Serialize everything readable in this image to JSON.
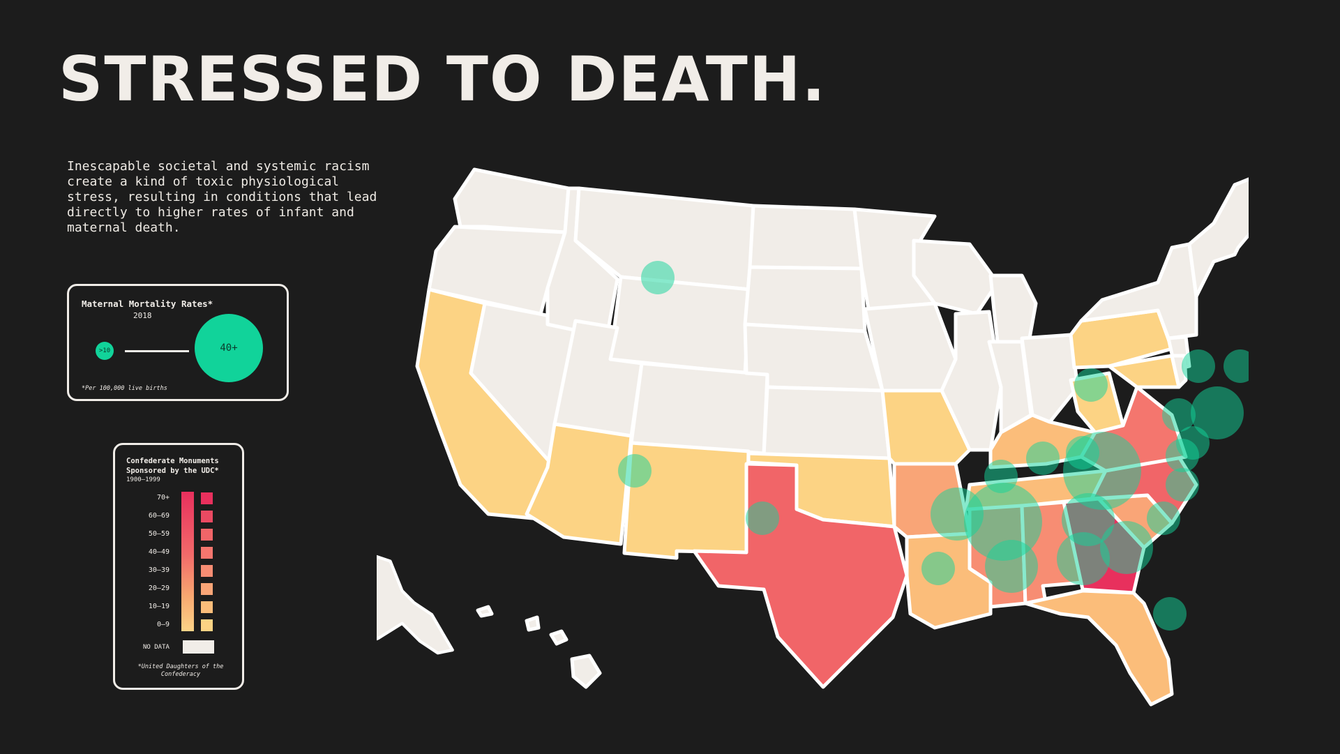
{
  "title": "STRESSED TO DEATH.",
  "intro": "Inescapable societal and systemic racism create a kind of toxic physiological stress, resulting in conditions that lead directly to higher rates of infant and maternal death.",
  "colors": {
    "background": "#1c1c1c",
    "no_data": "#f1ede8",
    "mortality_bubble": "#11d39a",
    "monuments_0_9": "#fcd384",
    "monuments_10_19": "#fbbd7a",
    "monuments_20_29": "#f9a577",
    "monuments_30_39": "#f78d73",
    "monuments_40_49": "#f4766e",
    "monuments_50_59": "#f16568",
    "monuments_60_69": "#ea4a62",
    "monuments_70_plus": "#e8305d"
  },
  "legend_mortality": {
    "title": "Maternal Mortality Rates*",
    "year": "2018",
    "small_label": ">10",
    "large_label": "40+",
    "footnote": "*Per 100,000 live births"
  },
  "legend_monuments": {
    "title": "Confederate Monuments Sponsored by the UDC*",
    "years": "1900–1999",
    "bins": [
      "70+",
      "60–69",
      "50–59",
      "40–49",
      "30–39",
      "20–29",
      "10–19",
      "0–9"
    ],
    "no_data_label": "NO DATA",
    "footnote": "*United Daughters of the Confederacy"
  },
  "map_data": {
    "states": [
      {
        "id": "WA",
        "category": "no_data"
      },
      {
        "id": "OR",
        "category": "no_data"
      },
      {
        "id": "CA",
        "category": "0-9"
      },
      {
        "id": "NV",
        "category": "no_data"
      },
      {
        "id": "ID",
        "category": "no_data"
      },
      {
        "id": "MT",
        "category": "no_data"
      },
      {
        "id": "WY",
        "category": "no_data"
      },
      {
        "id": "UT",
        "category": "no_data"
      },
      {
        "id": "AZ",
        "category": "0-9"
      },
      {
        "id": "CO",
        "category": "no_data"
      },
      {
        "id": "NM",
        "category": "0-9"
      },
      {
        "id": "ND",
        "category": "no_data"
      },
      {
        "id": "SD",
        "category": "no_data"
      },
      {
        "id": "NE",
        "category": "no_data"
      },
      {
        "id": "KS",
        "category": "no_data"
      },
      {
        "id": "OK",
        "category": "0-9"
      },
      {
        "id": "TX",
        "category": "50-59"
      },
      {
        "id": "MN",
        "category": "no_data"
      },
      {
        "id": "IA",
        "category": "no_data"
      },
      {
        "id": "MO",
        "category": "0-9"
      },
      {
        "id": "AR",
        "category": "20-29"
      },
      {
        "id": "LA",
        "category": "10-19"
      },
      {
        "id": "WI",
        "category": "no_data"
      },
      {
        "id": "IL",
        "category": "no_data"
      },
      {
        "id": "MI",
        "category": "no_data"
      },
      {
        "id": "IN",
        "category": "no_data"
      },
      {
        "id": "OH",
        "category": "no_data"
      },
      {
        "id": "KY",
        "category": "10-19"
      },
      {
        "id": "TN",
        "category": "10-19"
      },
      {
        "id": "MS",
        "category": "30-39"
      },
      {
        "id": "AL",
        "category": "30-39"
      },
      {
        "id": "GA",
        "category": "70+"
      },
      {
        "id": "FL",
        "category": "10-19"
      },
      {
        "id": "SC",
        "category": "20-29"
      },
      {
        "id": "NC",
        "category": "50-59"
      },
      {
        "id": "VA",
        "category": "40-49"
      },
      {
        "id": "WV",
        "category": "0-9"
      },
      {
        "id": "PA",
        "category": "0-9"
      },
      {
        "id": "NY",
        "category": "no_data"
      },
      {
        "id": "NJ",
        "category": "no_data"
      },
      {
        "id": "MD",
        "category": "0-9"
      },
      {
        "id": "DE",
        "category": "no_data"
      },
      {
        "id": "New England",
        "category": "no_data"
      },
      {
        "id": "AK",
        "category": "no_data"
      },
      {
        "id": "HI",
        "category": "no_data"
      }
    ],
    "mortality_bubbles": [
      {
        "state": "WA",
        "level": "small"
      },
      {
        "state": "CA",
        "level": "small"
      },
      {
        "state": "AZ",
        "level": "small"
      },
      {
        "state": "TX",
        "level": "small"
      },
      {
        "state": "OK",
        "level": "medium"
      },
      {
        "state": "AR",
        "level": "large"
      },
      {
        "state": "MO",
        "level": "small"
      },
      {
        "state": "LA",
        "level": "medium"
      },
      {
        "state": "IL",
        "level": "small"
      },
      {
        "state": "IN",
        "level": "small"
      },
      {
        "state": "MI",
        "level": "small"
      },
      {
        "state": "KY",
        "level": "large"
      },
      {
        "state": "TN",
        "level": "medium"
      },
      {
        "state": "AL",
        "level": "medium"
      },
      {
        "state": "GA",
        "level": "medium"
      },
      {
        "state": "FL",
        "level": "small"
      },
      {
        "state": "SC",
        "level": "small"
      },
      {
        "state": "NC",
        "level": "small"
      },
      {
        "state": "VA",
        "level": "small"
      },
      {
        "state": "PA",
        "level": "small"
      },
      {
        "state": "NY",
        "level": "small"
      },
      {
        "state": "New England",
        "level": "small"
      },
      {
        "state": "NJ",
        "level": "medium"
      },
      {
        "state": "DE",
        "level": "small"
      }
    ]
  }
}
